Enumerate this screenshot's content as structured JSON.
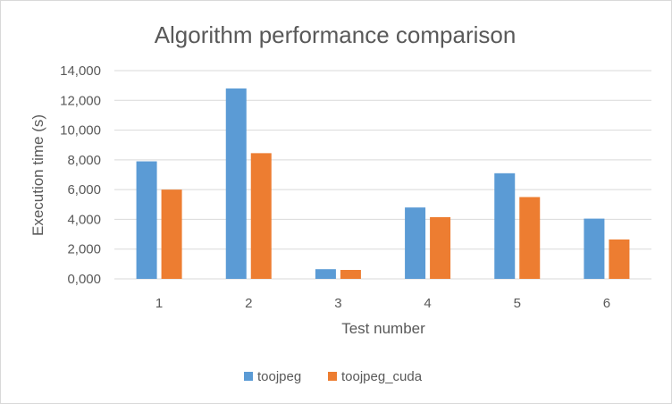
{
  "chart_data": {
    "type": "bar",
    "title": "Algorithm performance  comparison",
    "xlabel": "Test number",
    "ylabel": "Execution time (s)",
    "categories": [
      "1",
      "2",
      "3",
      "4",
      "5",
      "6"
    ],
    "series": [
      {
        "name": "toojpeg",
        "color": "#5b9bd5",
        "values": [
          7.9,
          12.8,
          0.65,
          4.8,
          7.1,
          4.05
        ]
      },
      {
        "name": "toojpeg_cuda",
        "color": "#ed7d31",
        "values": [
          6.0,
          8.45,
          0.6,
          4.15,
          5.5,
          2.65
        ]
      }
    ],
    "ylim": [
      0,
      14
    ],
    "yticks": [
      "0,000",
      "2,000",
      "4,000",
      "6,000",
      "8,000",
      "10,000",
      "12,000",
      "14,000"
    ],
    "grid": true,
    "legend": "bottom",
    "gridline_color": "#d9d9d9"
  }
}
